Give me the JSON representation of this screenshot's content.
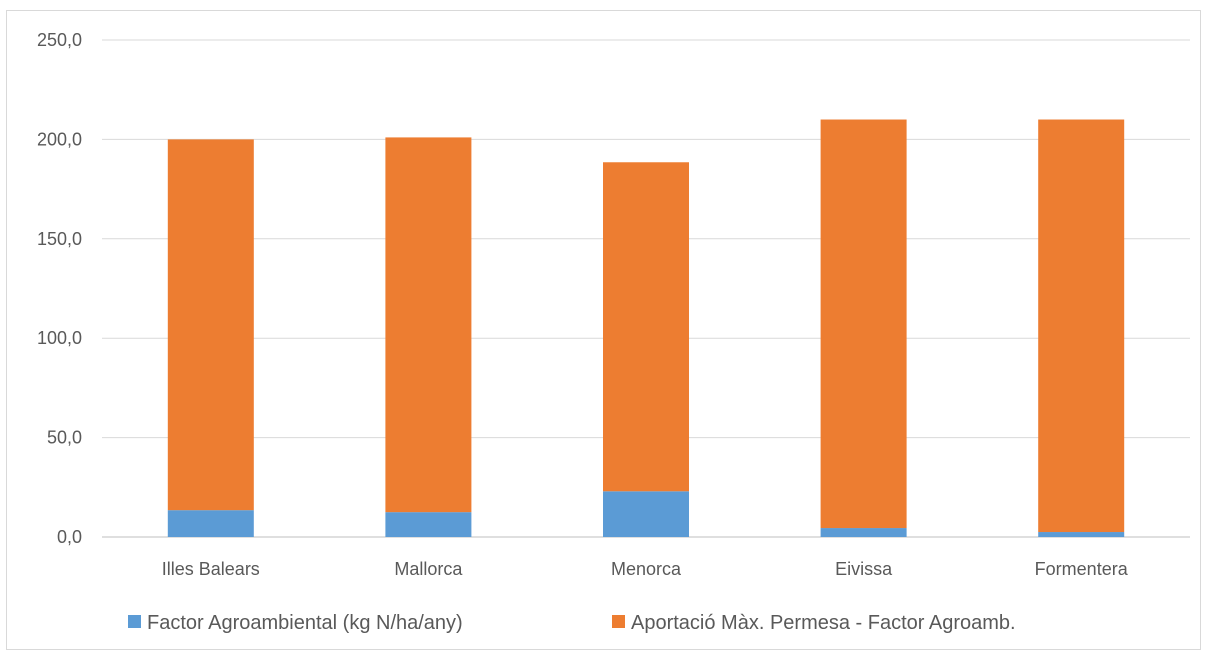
{
  "chart_data": {
    "type": "bar",
    "stacked": true,
    "categories": [
      "Illes Balears",
      "Mallorca",
      "Menorca",
      "Eivissa",
      "Formentera"
    ],
    "series": [
      {
        "name": "Factor Agroambiental (kg N/ha/any)",
        "color": "#5b9bd5",
        "values": [
          13.5,
          12.5,
          23.0,
          4.5,
          2.5
        ]
      },
      {
        "name": "Aportació Màx. Permesa - Factor Agroamb.",
        "color": "#ed7d31",
        "values": [
          186.5,
          188.5,
          165.5,
          205.5,
          207.5
        ]
      }
    ],
    "yticks": [
      "0,0",
      "50,0",
      "100,0",
      "150,0",
      "200,0",
      "250,0"
    ],
    "ylim": [
      0,
      250
    ],
    "title": "",
    "xlabel": "",
    "ylabel": "",
    "grid": true,
    "legend_position": "bottom"
  }
}
